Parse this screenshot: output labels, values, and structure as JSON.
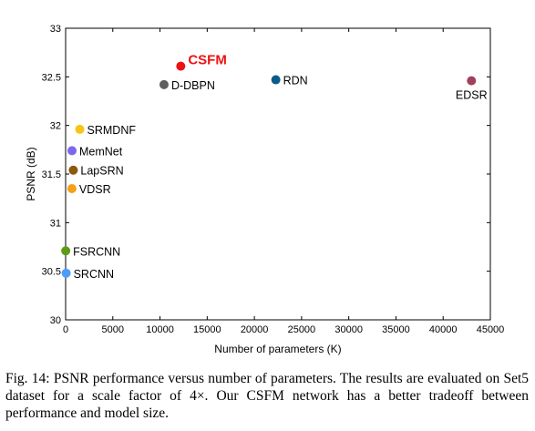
{
  "chart_data": {
    "type": "scatter",
    "title": "",
    "xlabel": "Number of parameters (K)",
    "ylabel": "PSNR (dB)",
    "xlim": [
      0,
      45000
    ],
    "ylim": [
      30,
      33
    ],
    "xticks": [
      "0",
      "5000",
      "10000",
      "15000",
      "20000",
      "25000",
      "30000",
      "35000",
      "40000",
      "45000"
    ],
    "yticks": [
      "30",
      "30.5",
      "31",
      "31.5",
      "32",
      "32.5",
      "33"
    ],
    "grid": false,
    "points": [
      {
        "label": "SRCNN",
        "x": 57,
        "y": 30.48,
        "color": "#4a9eff",
        "label_pos": "right"
      },
      {
        "label": "FSRCNN",
        "x": 12,
        "y": 30.71,
        "color": "#5e9a17",
        "label_pos": "right"
      },
      {
        "label": "VDSR",
        "x": 665,
        "y": 31.35,
        "color": "#f5a017",
        "label_pos": "right"
      },
      {
        "label": "LapSRN",
        "x": 813,
        "y": 31.54,
        "color": "#8b5a0a",
        "label_pos": "right"
      },
      {
        "label": "MemNet",
        "x": 677,
        "y": 31.74,
        "color": "#7b68ee",
        "label_pos": "right"
      },
      {
        "label": "SRMDNF",
        "x": 1500,
        "y": 31.96,
        "color": "#f5c518",
        "label_pos": "right"
      },
      {
        "label": "D-DBPN",
        "x": 10426,
        "y": 32.42,
        "color": "#5f5f5f",
        "label_pos": "right"
      },
      {
        "label": "CSFM",
        "x": 12200,
        "y": 32.61,
        "color": "#ee1111",
        "label_pos": "right",
        "highlight": true,
        "label_color": "#ee1111"
      },
      {
        "label": "RDN",
        "x": 22271,
        "y": 32.47,
        "color": "#0b5c8a",
        "label_pos": "right"
      },
      {
        "label": "EDSR",
        "x": 43000,
        "y": 32.46,
        "color": "#a0405a",
        "label_pos": "below"
      }
    ]
  },
  "caption": "Fig. 14: PSNR performance versus number of parameters. The results are evaluated on Set5 dataset for a scale factor of 4×. Our CSFM network has a better tradeoff between performance and model size."
}
